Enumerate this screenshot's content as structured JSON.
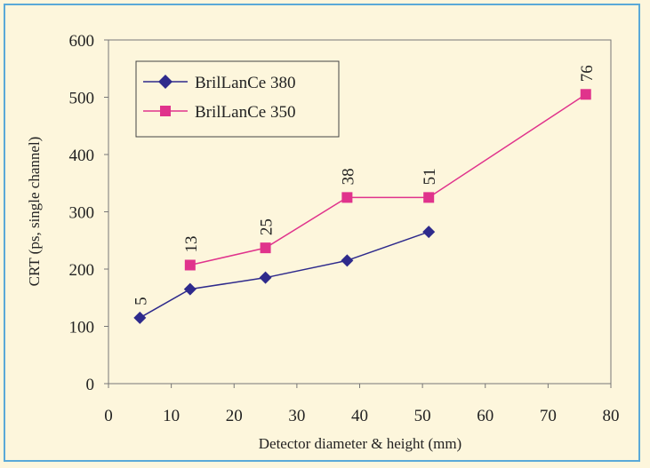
{
  "chart_data": {
    "type": "line",
    "xlabel": "Detector diameter & height (mm)",
    "ylabel": "CRT (ps, single channel)",
    "xlim": [
      0,
      80
    ],
    "ylim": [
      0,
      600
    ],
    "xticks": [
      0,
      10,
      20,
      30,
      40,
      50,
      60,
      70,
      80
    ],
    "yticks": [
      0,
      100,
      200,
      300,
      400,
      500,
      600
    ],
    "grid": false,
    "legend_position": "top-left",
    "series": [
      {
        "name": "BrilLanCe 380",
        "color": "#2e2a8c",
        "marker": "diamond",
        "x": [
          5,
          13,
          25,
          38,
          51
        ],
        "y": [
          115,
          165,
          185,
          215,
          265
        ]
      },
      {
        "name": "BrilLanCe 350",
        "color": "#e0338c",
        "marker": "square",
        "x": [
          13,
          25,
          38,
          51,
          76
        ],
        "y": [
          207,
          237,
          325,
          325,
          505
        ]
      }
    ],
    "point_labels": [
      {
        "text": "5",
        "x": 5,
        "y": 115
      },
      {
        "text": "13",
        "x": 13,
        "y": 207
      },
      {
        "text": "25",
        "x": 25,
        "y": 237
      },
      {
        "text": "38",
        "x": 38,
        "y": 325
      },
      {
        "text": "51",
        "x": 51,
        "y": 325
      },
      {
        "text": "76",
        "x": 76,
        "y": 505
      }
    ]
  }
}
